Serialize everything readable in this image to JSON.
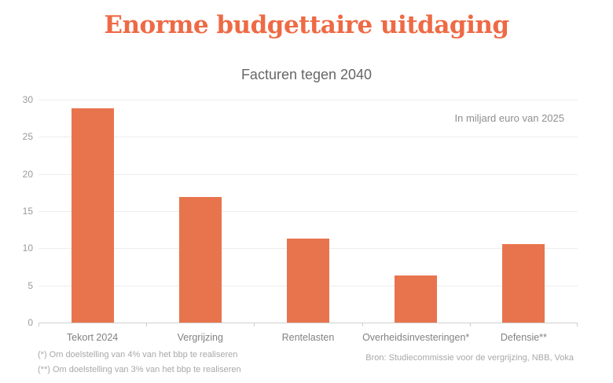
{
  "page": {
    "title": "Enorme budgettaire uitdaging",
    "title_color": "#ee6a45",
    "background_color": "#ffffff"
  },
  "chart_data": {
    "type": "bar",
    "title": "Facturen tegen 2040",
    "unit_note": "In miljard euro van 2025",
    "categories": [
      "Tekort 2024",
      "Vergrijzing",
      "Rentelasten",
      "Overheidsinvesteringen*",
      "Defensie**"
    ],
    "values": [
      28.8,
      16.9,
      11.3,
      6.3,
      10.6
    ],
    "ylim": [
      0,
      30
    ],
    "yticks": [
      0,
      5,
      10,
      15,
      20,
      25,
      30
    ],
    "grid": true,
    "legend": "none",
    "bar_color": "#e8744d",
    "xlabel": "",
    "ylabel": ""
  },
  "footnotes": [
    "(*) Om doelstelling van 4% van het bbp te realiseren",
    "(**) Om doelstelling van 3% van het bbp te realiseren"
  ],
  "source": "Bron: Studiecommissie voor de vergrijzing, NBB, Voka"
}
